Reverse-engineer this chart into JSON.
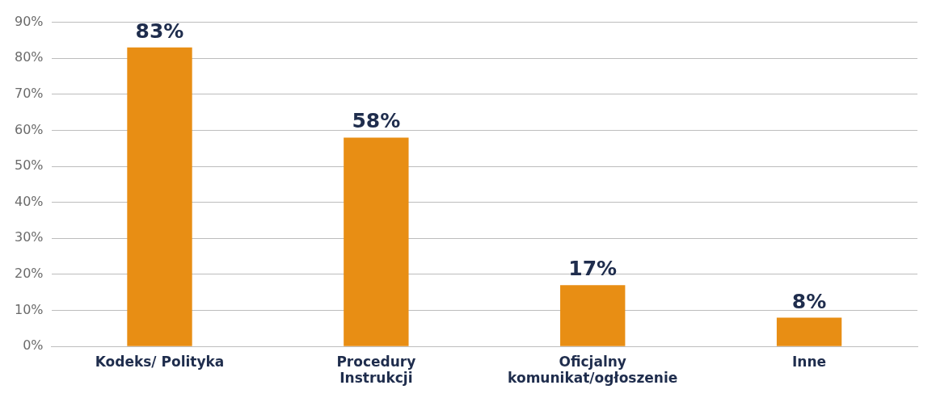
{
  "chart_data": {
    "type": "bar",
    "categories": [
      "Kodeks/ Polityka",
      "Procedury\nInstrukcji",
      "Oficjalny\nkomunikat/ogłoszenie",
      "Inne"
    ],
    "values": [
      83,
      58,
      17,
      8
    ],
    "color": "#e88e14",
    "ylim": [
      0,
      90
    ],
    "yticks": [
      {
        "value": 0,
        "label": "0%"
      },
      {
        "value": 10,
        "label": "10%"
      },
      {
        "value": 20,
        "label": "20%"
      },
      {
        "value": 30,
        "label": "30%"
      },
      {
        "value": 40,
        "label": "40%"
      },
      {
        "value": 50,
        "label": "50%"
      },
      {
        "value": 60,
        "label": "60%"
      },
      {
        "value": 70,
        "label": "70%"
      },
      {
        "value": 80,
        "label": "80%"
      },
      {
        "value": 90,
        "label": "90%"
      }
    ],
    "value_labels": [
      "83%",
      "58%",
      "17%",
      "8%"
    ],
    "grid": "y"
  }
}
